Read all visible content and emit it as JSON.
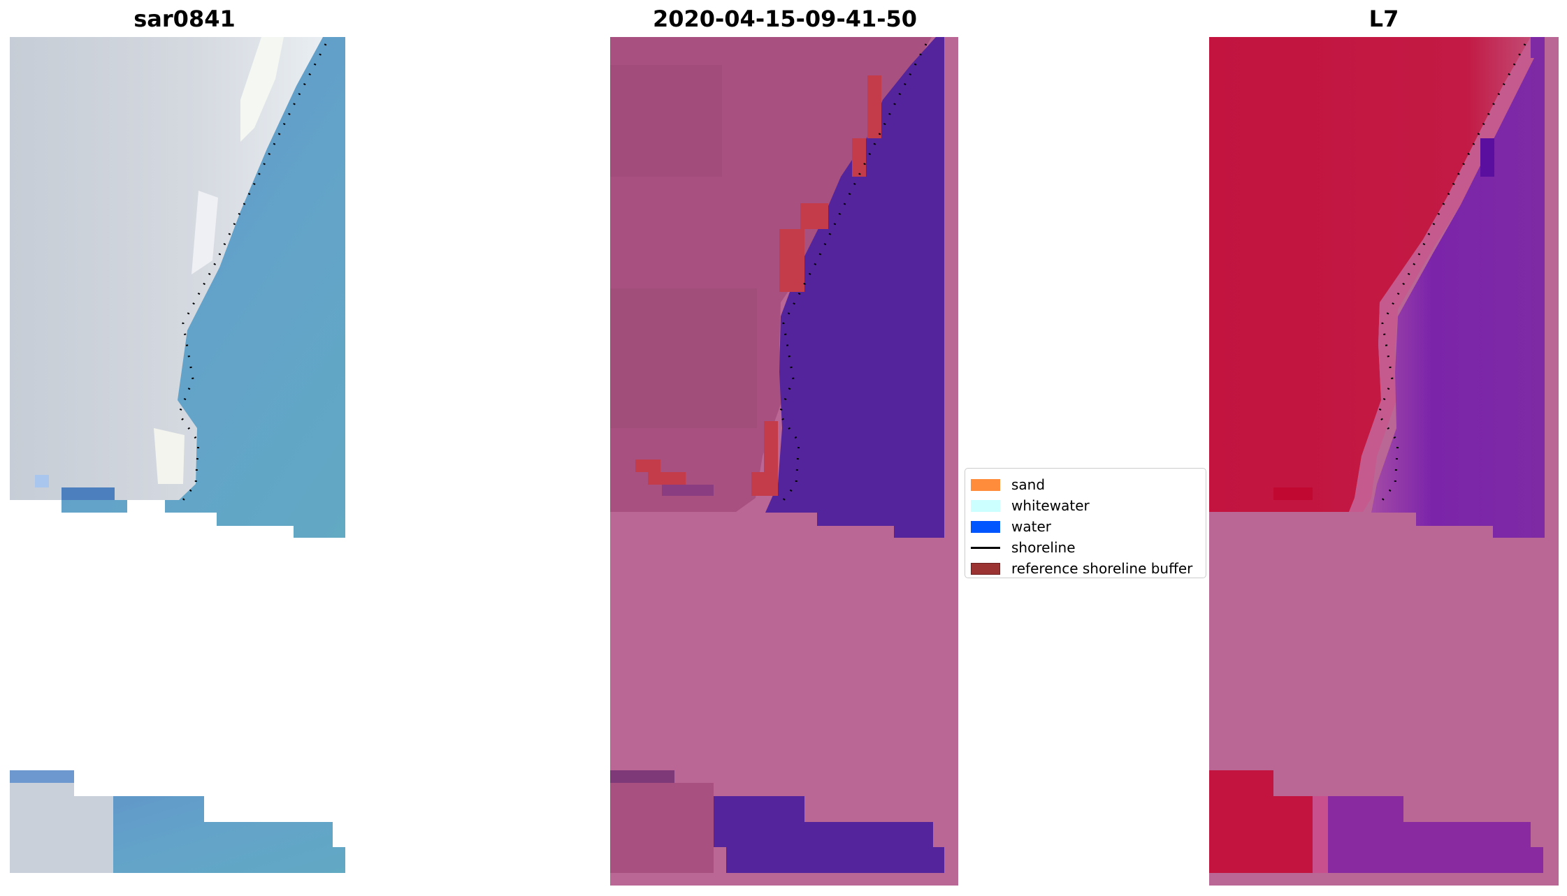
{
  "panels": {
    "rgb": {
      "title": "sar0841"
    },
    "classification": {
      "title": "2020-04-15-09-41-50"
    },
    "index": {
      "title": "L7"
    }
  },
  "legend": {
    "items": [
      {
        "label": "sand",
        "kind": "patch",
        "color": "#ff8c3a"
      },
      {
        "label": "whitewater",
        "kind": "patch",
        "color": "#ccffff"
      },
      {
        "label": "water",
        "kind": "patch",
        "color": "#0055ff"
      },
      {
        "label": "shoreline",
        "kind": "line",
        "color": "#000000"
      },
      {
        "label": "reference shoreline buffer",
        "kind": "patch",
        "color": "#9c3333"
      }
    ]
  },
  "colors": {
    "background_mask": "#bb6795",
    "classified_land": "#a8507f",
    "classified_water": "#54249c",
    "buffer": "#c43b4a",
    "index_land": "#c2143f",
    "index_water": "#7d23a8",
    "rgb_land": "#cfd2da",
    "rgb_water": "#66a3c8"
  }
}
